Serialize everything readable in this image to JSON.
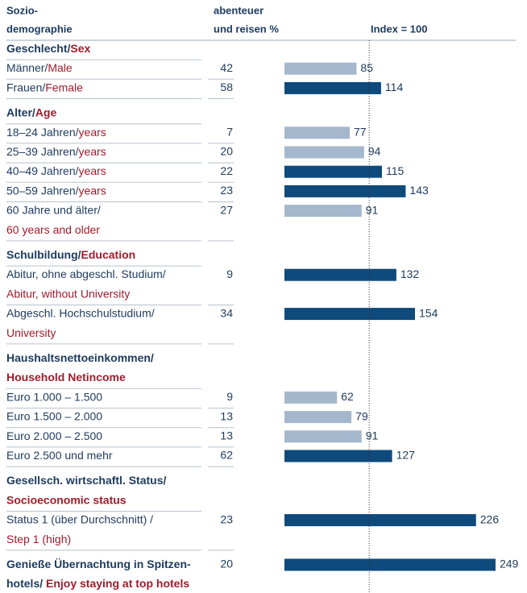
{
  "header": {
    "col1": [
      "Sozio-",
      "demographie"
    ],
    "col2": [
      "abenteuer",
      "und reisen %"
    ],
    "col3": "Index = 100"
  },
  "index_line": 100,
  "xlim": [
    0,
    280
  ],
  "rows": [
    {
      "bold": true,
      "label": [
        [
          {
            "text": "Geschlecht/",
            "color": "#1d3a5e"
          },
          {
            "text": "Sex",
            "color": "#a01c2b"
          }
        ]
      ]
    },
    {
      "label": [
        [
          {
            "text": "Männer/",
            "color": "#1d3a5e"
          },
          {
            "text": "Male",
            "color": "#a01c2b"
          }
        ]
      ],
      "percent": 42,
      "index": 85,
      "color": "#a5b7cd"
    },
    {
      "label": [
        [
          {
            "text": "Frauen/",
            "color": "#1d3a5e"
          },
          {
            "text": "Female",
            "color": "#a01c2b"
          }
        ]
      ],
      "percent": 58,
      "index": 114,
      "color": "#0e4a7c"
    },
    {
      "bold": true,
      "label": [
        [
          {
            "text": "Alter/",
            "color": "#1d3a5e"
          },
          {
            "text": "Age",
            "color": "#a01c2b"
          }
        ]
      ]
    },
    {
      "label": [
        [
          {
            "text": "18–24 Jahren/",
            "color": "#1d3a5e"
          },
          {
            "text": "years",
            "color": "#a01c2b"
          }
        ]
      ],
      "percent": 7,
      "index": 77,
      "color": "#a5b7cd"
    },
    {
      "label": [
        [
          {
            "text": "25–39 Jahren/",
            "color": "#1d3a5e"
          },
          {
            "text": "years",
            "color": "#a01c2b"
          }
        ]
      ],
      "percent": 20,
      "index": 94,
      "color": "#a5b7cd"
    },
    {
      "label": [
        [
          {
            "text": "40–49 Jahren/",
            "color": "#1d3a5e"
          },
          {
            "text": "years",
            "color": "#a01c2b"
          }
        ]
      ],
      "percent": 22,
      "index": 115,
      "color": "#0e4a7c"
    },
    {
      "label": [
        [
          {
            "text": "50–59 Jahren/",
            "color": "#1d3a5e"
          },
          {
            "text": "years",
            "color": "#a01c2b"
          }
        ]
      ],
      "percent": 23,
      "index": 143,
      "color": "#0e4a7c"
    },
    {
      "label": [
        [
          {
            "text": "60 Jahre und älter/",
            "color": "#1d3a5e"
          }
        ],
        [
          {
            "text": "60 years and older",
            "color": "#a01c2b"
          }
        ]
      ],
      "percent": 27,
      "index": 91,
      "color": "#a5b7cd"
    },
    {
      "bold": true,
      "label": [
        [
          {
            "text": "Schulbildung/",
            "color": "#1d3a5e"
          },
          {
            "text": "Education",
            "color": "#a01c2b"
          }
        ]
      ]
    },
    {
      "label": [
        [
          {
            "text": "Abitur, ohne abgeschl. Studium/",
            "color": "#1d3a5e"
          }
        ],
        [
          {
            "text": "Abitur, without University",
            "color": "#a01c2b"
          }
        ]
      ],
      "percent": 9,
      "index": 132,
      "color": "#0e4a7c"
    },
    {
      "label": [
        [
          {
            "text": "Abgeschl. Hochschulstudium/",
            "color": "#1d3a5e"
          }
        ],
        [
          {
            "text": "University",
            "color": "#a01c2b"
          }
        ]
      ],
      "percent": 34,
      "index": 154,
      "color": "#0e4a7c"
    },
    {
      "bold": true,
      "label": [
        [
          {
            "text": "Haushaltsnettoeinkommen/",
            "color": "#1d3a5e"
          }
        ],
        [
          {
            "text": "Household Netincome",
            "color": "#a01c2b"
          }
        ]
      ]
    },
    {
      "label": [
        [
          {
            "text": "Euro 1.000 – 1.500",
            "color": "#1d3a5e"
          }
        ]
      ],
      "percent": 9,
      "index": 62,
      "color": "#a5b7cd"
    },
    {
      "label": [
        [
          {
            "text": "Euro 1.500 – 2.000",
            "color": "#1d3a5e"
          }
        ]
      ],
      "percent": 13,
      "index": 79,
      "color": "#a5b7cd"
    },
    {
      "label": [
        [
          {
            "text": "Euro 2.000 – 2.500",
            "color": "#1d3a5e"
          }
        ]
      ],
      "percent": 13,
      "index": 91,
      "color": "#a5b7cd"
    },
    {
      "label": [
        [
          {
            "text": "Euro 2.500 und mehr",
            "color": "#1d3a5e"
          }
        ]
      ],
      "percent": 62,
      "index": 127,
      "color": "#0e4a7c"
    },
    {
      "bold": true,
      "label": [
        [
          {
            "text": "Gesellsch. wirtschaftl. Status/",
            "color": "#1d3a5e"
          }
        ],
        [
          {
            "text": "Socioeconomic status",
            "color": "#a01c2b"
          }
        ]
      ]
    },
    {
      "label": [
        [
          {
            "text": "Status 1 (über Durchschnitt) /",
            "color": "#1d3a5e"
          }
        ],
        [
          {
            "text": "Step 1 (high)",
            "color": "#a01c2b"
          }
        ]
      ],
      "percent": 23,
      "index": 226,
      "color": "#0e4a7c"
    },
    {
      "bold": true,
      "label": [
        [
          {
            "text": "Genieße Übernachtung in Spitzen-",
            "color": "#1d3a5e"
          }
        ],
        [
          {
            "text": "hotels/ ",
            "color": "#1d3a5e"
          },
          {
            "text": "Enjoy staying at top hotels",
            "color": "#a01c2b"
          }
        ]
      ],
      "percent": 20,
      "index": 249,
      "color": "#0e4a7c"
    }
  ]
}
